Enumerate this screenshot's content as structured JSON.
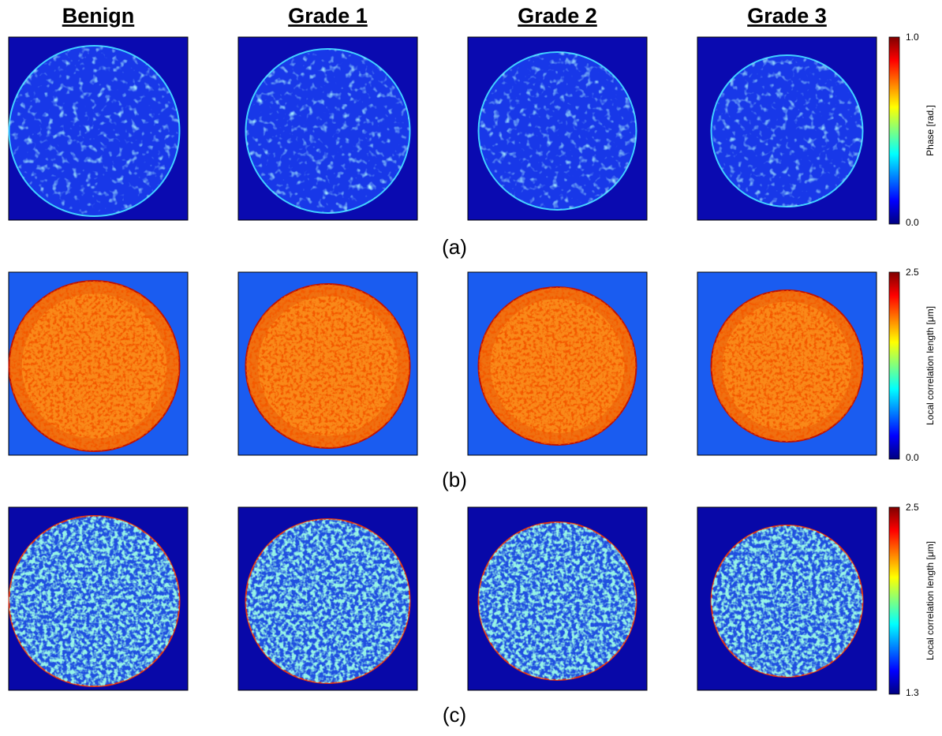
{
  "columns": [
    "Benign",
    "Grade 1",
    "Grade 2",
    "Grade 3"
  ],
  "rows": [
    {
      "label": "(a)",
      "colorbar": {
        "title": "Phase [rad.]",
        "max": "1.0",
        "min": "0.0"
      }
    },
    {
      "label": "(b)",
      "colorbar": {
        "title": "Local correlation length [μm]",
        "max": "2.5",
        "min": "0.0"
      }
    },
    {
      "label": "(c)",
      "colorbar": {
        "title": "Local correlation length [μm]",
        "max": "2.5",
        "min": "1.3"
      }
    }
  ]
}
